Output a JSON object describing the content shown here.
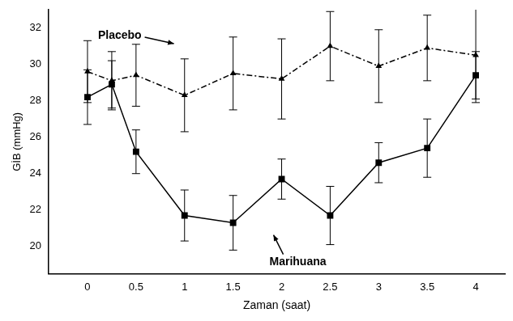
{
  "chart_data": {
    "type": "line",
    "x_label": "Zaman (saat)",
    "y_label": "GİB (mmHg)",
    "x": [
      0,
      0.25,
      0.5,
      1,
      1.5,
      2,
      2.5,
      3,
      3.5,
      4
    ],
    "xlim": [
      -0.4,
      4.3
    ],
    "xticks": [
      0,
      0.5,
      1,
      1.5,
      2,
      2.5,
      3,
      3.5,
      4
    ],
    "ylim": [
      18.5,
      33
    ],
    "yticks": [
      20,
      22,
      24,
      26,
      28,
      30,
      32
    ],
    "grid": false,
    "series": [
      {
        "name": "Placebo",
        "color": "#000000",
        "marker": "triangle",
        "line_style": "dashdot",
        "values": [
          29.6,
          29.1,
          29.4,
          28.3,
          29.5,
          29.2,
          31.0,
          29.9,
          30.9,
          30.5
        ],
        "errors": [
          1.7,
          1.6,
          1.7,
          2.0,
          2.0,
          2.2,
          1.9,
          2.0,
          1.8,
          2.6
        ]
      },
      {
        "name": "Marihuana",
        "color": "#000000",
        "marker": "square",
        "line_style": "solid",
        "values": [
          28.2,
          28.9,
          25.2,
          21.7,
          21.3,
          23.7,
          21.7,
          24.6,
          25.4,
          29.4
        ],
        "errors": [
          1.5,
          1.3,
          1.2,
          1.4,
          1.5,
          1.1,
          1.6,
          1.1,
          1.6,
          1.3
        ]
      }
    ]
  }
}
